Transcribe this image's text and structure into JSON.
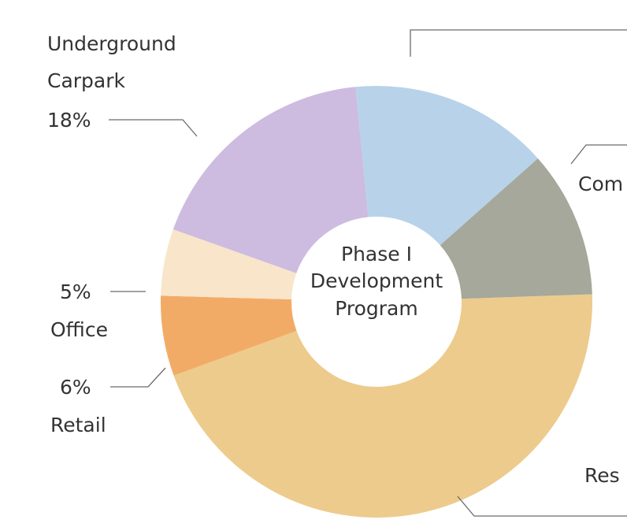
{
  "chart_data": {
    "type": "pie",
    "donut": true,
    "center_label": [
      "Phase I",
      "Development",
      "Program"
    ],
    "slices": [
      {
        "label": "Residential",
        "visible_text": "Res",
        "value": 45,
        "color": "#EDCB8C"
      },
      {
        "label": "Retail",
        "visible_text": "Retail",
        "value": 6,
        "value_text": "6%",
        "color": "#F2AB66"
      },
      {
        "label": "Office",
        "visible_text": "Office",
        "value": 5,
        "value_text": "5%",
        "color": "#F8E5CA"
      },
      {
        "label": "Underground Carpark",
        "visible_lines": [
          "Underground",
          "Carpark"
        ],
        "value": 18,
        "value_text": "18%",
        "color": "#CDBBE0"
      },
      {
        "label": "",
        "value": 15,
        "color": "#B8D2EA"
      },
      {
        "label": "",
        "visible_text": "Com",
        "value": 11,
        "color": "#A5A89A"
      }
    ]
  }
}
